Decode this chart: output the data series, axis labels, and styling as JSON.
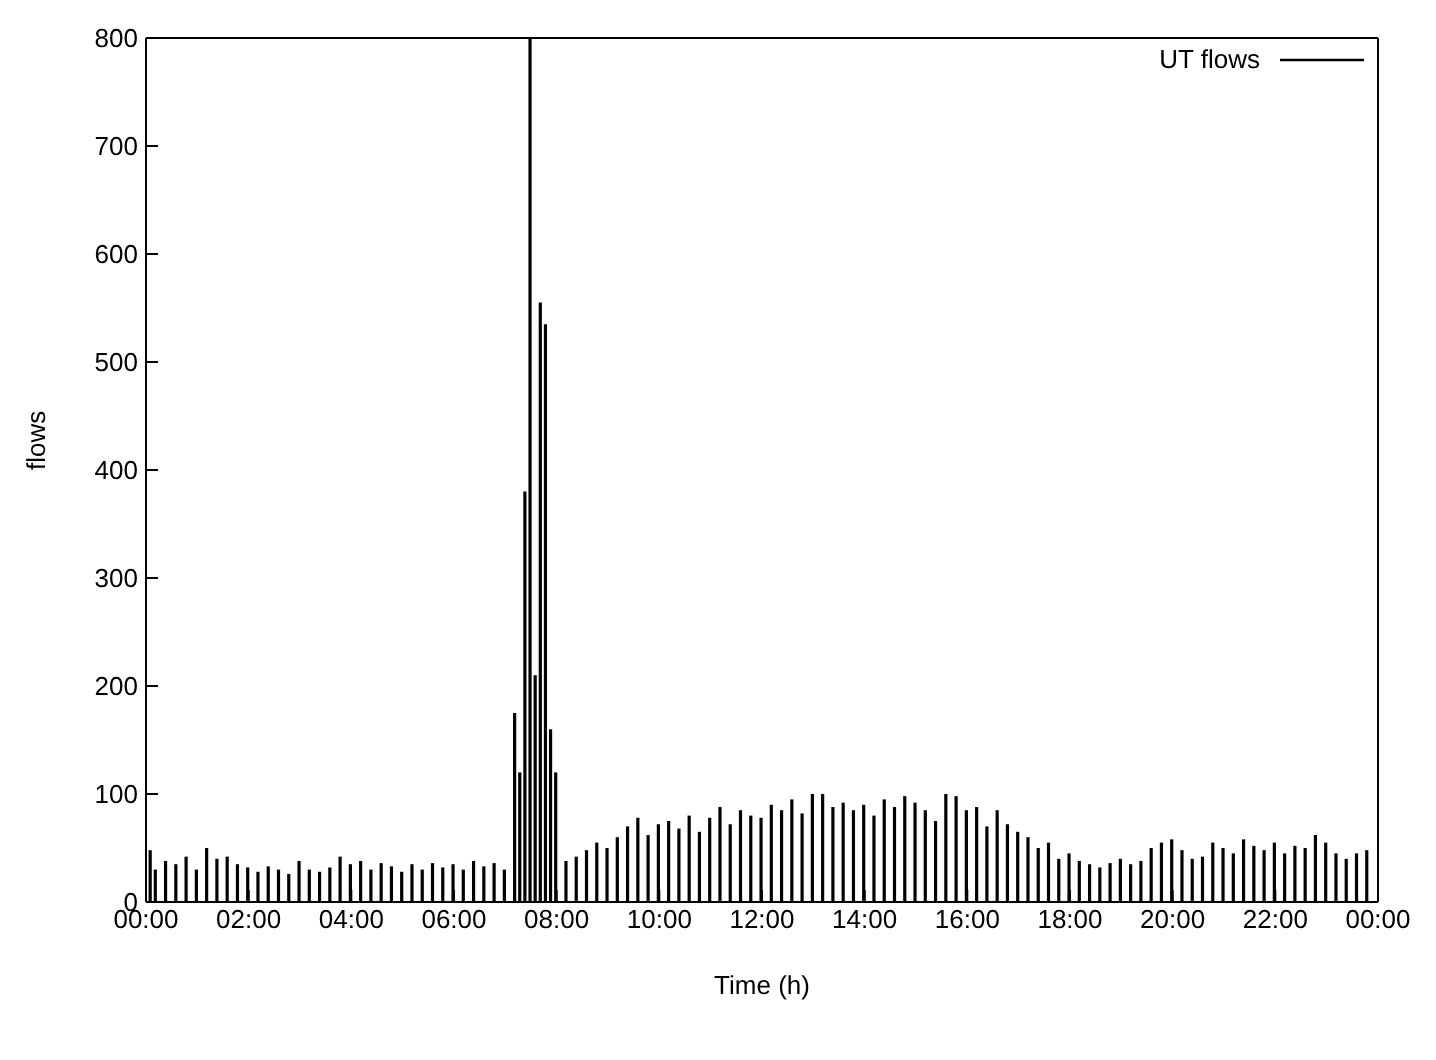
{
  "chart_data": {
    "type": "bar",
    "xlabel": "Time (h)",
    "ylabel": "flows",
    "x": [
      0.1,
      0.2,
      0.4,
      0.6,
      0.8,
      1.0,
      1.2,
      1.4,
      1.6,
      1.8,
      2.0,
      2.2,
      2.4,
      2.6,
      2.8,
      3.0,
      3.2,
      3.4,
      3.6,
      3.8,
      4.0,
      4.2,
      4.4,
      4.6,
      4.8,
      5.0,
      5.2,
      5.4,
      5.6,
      5.8,
      6.0,
      6.2,
      6.4,
      6.6,
      6.8,
      7.0,
      7.2,
      7.3,
      7.4,
      7.5,
      7.6,
      7.7,
      7.8,
      7.9,
      8.0,
      8.2,
      8.4,
      8.6,
      8.8,
      9.0,
      9.2,
      9.4,
      9.6,
      9.8,
      10.0,
      10.2,
      10.4,
      10.6,
      10.8,
      11.0,
      11.2,
      11.4,
      11.6,
      11.8,
      12.0,
      12.2,
      12.4,
      12.6,
      12.8,
      13.0,
      13.2,
      13.4,
      13.6,
      13.8,
      14.0,
      14.2,
      14.4,
      14.6,
      14.8,
      15.0,
      15.2,
      15.4,
      15.6,
      15.8,
      16.0,
      16.2,
      16.4,
      16.6,
      16.8,
      17.0,
      17.2,
      17.4,
      17.6,
      17.8,
      18.0,
      18.2,
      18.4,
      18.6,
      18.8,
      19.0,
      19.2,
      19.4,
      19.6,
      19.8,
      20.0,
      20.2,
      20.4,
      20.6,
      20.8,
      21.0,
      21.2,
      21.4,
      21.6,
      21.8,
      22.0,
      22.2,
      22.4,
      22.6,
      22.8,
      23.0,
      23.2,
      23.4,
      23.6,
      23.8
    ],
    "series": [
      {
        "name": "UT flows",
        "color": "#000000",
        "values": [
          48,
          30,
          38,
          35,
          42,
          30,
          50,
          40,
          42,
          35,
          32,
          28,
          33,
          30,
          26,
          38,
          30,
          28,
          32,
          42,
          35,
          38,
          30,
          36,
          33,
          28,
          35,
          30,
          36,
          32,
          35,
          30,
          38,
          33,
          36,
          30,
          175,
          120,
          380,
          800,
          210,
          555,
          535,
          160,
          120,
          38,
          42,
          48,
          55,
          50,
          60,
          70,
          78,
          62,
          72,
          75,
          68,
          80,
          65,
          78,
          88,
          72,
          85,
          80,
          78,
          90,
          85,
          95,
          82,
          100,
          100,
          88,
          92,
          85,
          90,
          80,
          95,
          88,
          98,
          92,
          85,
          75,
          100,
          98,
          85,
          88,
          70,
          85,
          72,
          65,
          60,
          50,
          55,
          40,
          45,
          38,
          35,
          32,
          36,
          40,
          35,
          38,
          50,
          55,
          58,
          48,
          40,
          42,
          55,
          50,
          45,
          58,
          52,
          48,
          55,
          45,
          52,
          50,
          62,
          55,
          45,
          40,
          45,
          48
        ]
      }
    ],
    "xlim": [
      0,
      24
    ],
    "xticks": [
      {
        "value": 0,
        "label": "00:00"
      },
      {
        "value": 2,
        "label": "02:00"
      },
      {
        "value": 4,
        "label": "04:00"
      },
      {
        "value": 6,
        "label": "06:00"
      },
      {
        "value": 8,
        "label": "08:00"
      },
      {
        "value": 10,
        "label": "10:00"
      },
      {
        "value": 12,
        "label": "12:00"
      },
      {
        "value": 14,
        "label": "14:00"
      },
      {
        "value": 16,
        "label": "16:00"
      },
      {
        "value": 18,
        "label": "18:00"
      },
      {
        "value": 20,
        "label": "20:00"
      },
      {
        "value": 22,
        "label": "22:00"
      },
      {
        "value": 24,
        "label": "00:00"
      }
    ],
    "ylim": [
      0,
      800
    ],
    "yticks": [
      0,
      100,
      200,
      300,
      400,
      500,
      600,
      700,
      800
    ],
    "grid": false,
    "legend": "top right"
  }
}
